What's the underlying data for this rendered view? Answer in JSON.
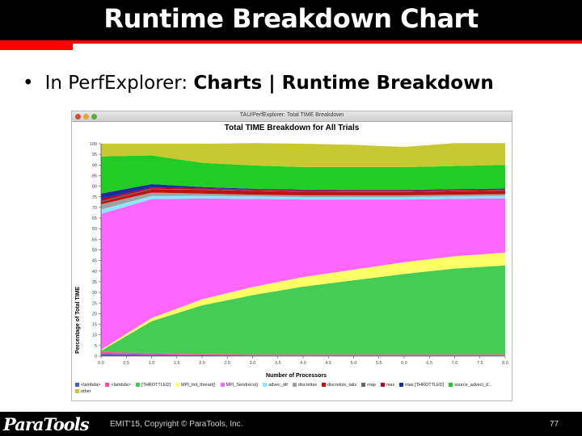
{
  "slide": {
    "title": "Runtime Breakdown Chart",
    "bullet_prefix": "In PerfExplorer: ",
    "bullet_bold": "Charts | Runtime Breakdown",
    "footer": "EMIT'15, Copyright © ParaTools, Inc.",
    "page_number": "77",
    "logo_text": "ParaTools"
  },
  "window": {
    "title": "TAU/PerfExplorer: Total TIME Breakdown",
    "buttons": [
      "close",
      "minimize",
      "maximize"
    ]
  },
  "chart_data": {
    "type": "area",
    "title": "Total TIME Breakdown for All Trials",
    "xlabel": "Number of Processors",
    "ylabel": "Percentage of Total TIME",
    "xlim": [
      0.0,
      8.0
    ],
    "ylim": [
      0,
      100
    ],
    "xticks": [
      "0.0",
      "0.5",
      "1.0",
      "1.5",
      "2.0",
      "2.5",
      "3.0",
      "3.5",
      "4.0",
      "4.5",
      "5.0",
      "5.5",
      "6.0",
      "6.5",
      "7.0",
      "7.5",
      "8.0"
    ],
    "yticks": [
      "0",
      "5",
      "10",
      "15",
      "20",
      "25",
      "30",
      "35",
      "40",
      "45",
      "50",
      "55",
      "60",
      "65",
      "70",
      "75",
      "80",
      "85",
      "90",
      "95",
      "100"
    ],
    "x": [
      0,
      1,
      2,
      3,
      4,
      5,
      6,
      7,
      8
    ],
    "series": [
      {
        "name": "<lambda>",
        "color": "#4060d0",
        "values": [
          1.0,
          0.6,
          0.4,
          0.3,
          0.3,
          0.3,
          0.3,
          0.3,
          0.3
        ]
      },
      {
        "name": "<lambda>",
        "color": "#ff50a0",
        "values": [
          1.0,
          0.8,
          0.5,
          0.4,
          0.4,
          0.4,
          0.4,
          0.4,
          0.4
        ]
      },
      {
        "name": "[THROTTLED]",
        "color": "#44cc55",
        "values": [
          0.5,
          15.0,
          23.0,
          28.0,
          32.0,
          35.0,
          38.0,
          40.5,
          42.0
        ]
      },
      {
        "name": "MPI_Init_thread()",
        "color": "#ffff66",
        "values": [
          0.5,
          1.5,
          2.8,
          3.8,
          4.5,
          5.0,
          5.5,
          5.8,
          6.0
        ]
      },
      {
        "name": "MPI_Sendrecv()",
        "color": "#ff66ff",
        "values": [
          64.0,
          56.0,
          47.5,
          41.5,
          36.5,
          33.0,
          29.5,
          27.0,
          25.6
        ]
      },
      {
        "name": "advec_dif",
        "color": "#88e8ff",
        "values": [
          2.0,
          1.5,
          1.3,
          1.2,
          1.2,
          1.2,
          1.2,
          1.2,
          1.2
        ]
      },
      {
        "name": "discretize",
        "color": "#a0a0a0",
        "values": [
          2.5,
          1.6,
          1.0,
          0.8,
          0.8,
          0.8,
          0.8,
          0.8,
          0.8
        ]
      },
      {
        "name": "discretize_tails",
        "color": "#c01010",
        "values": [
          1.0,
          1.5,
          1.8,
          1.8,
          1.7,
          1.6,
          1.6,
          1.6,
          1.6
        ]
      },
      {
        "name": "map",
        "color": "#666666",
        "values": [
          0.5,
          0.3,
          0.2,
          0.2,
          0.2,
          0.2,
          0.2,
          0.2,
          0.2
        ]
      },
      {
        "name": "max",
        "color": "#c00020",
        "values": [
          1.0,
          0.6,
          0.5,
          0.5,
          0.5,
          0.5,
          0.5,
          0.5,
          0.5
        ]
      },
      {
        "name": "max [THROTTLED]",
        "color": "#1a2ea0",
        "values": [
          2.5,
          1.6,
          0.6,
          0.3,
          0.3,
          0.3,
          0.3,
          0.3,
          0.3
        ]
      },
      {
        "name": "source_advect_d...",
        "color": "#22cc22",
        "values": [
          17.5,
          13.5,
          11.4,
          11.0,
          10.6,
          10.7,
          10.7,
          10.9,
          11.1
        ]
      },
      {
        "name": "other",
        "color": "#c8c832",
        "values": [
          6.0,
          5.5,
          9.0,
          10.5,
          11.0,
          10.5,
          9.5,
          10.8,
          10.3
        ]
      }
    ],
    "grid": false,
    "legend_position": "bottom"
  }
}
